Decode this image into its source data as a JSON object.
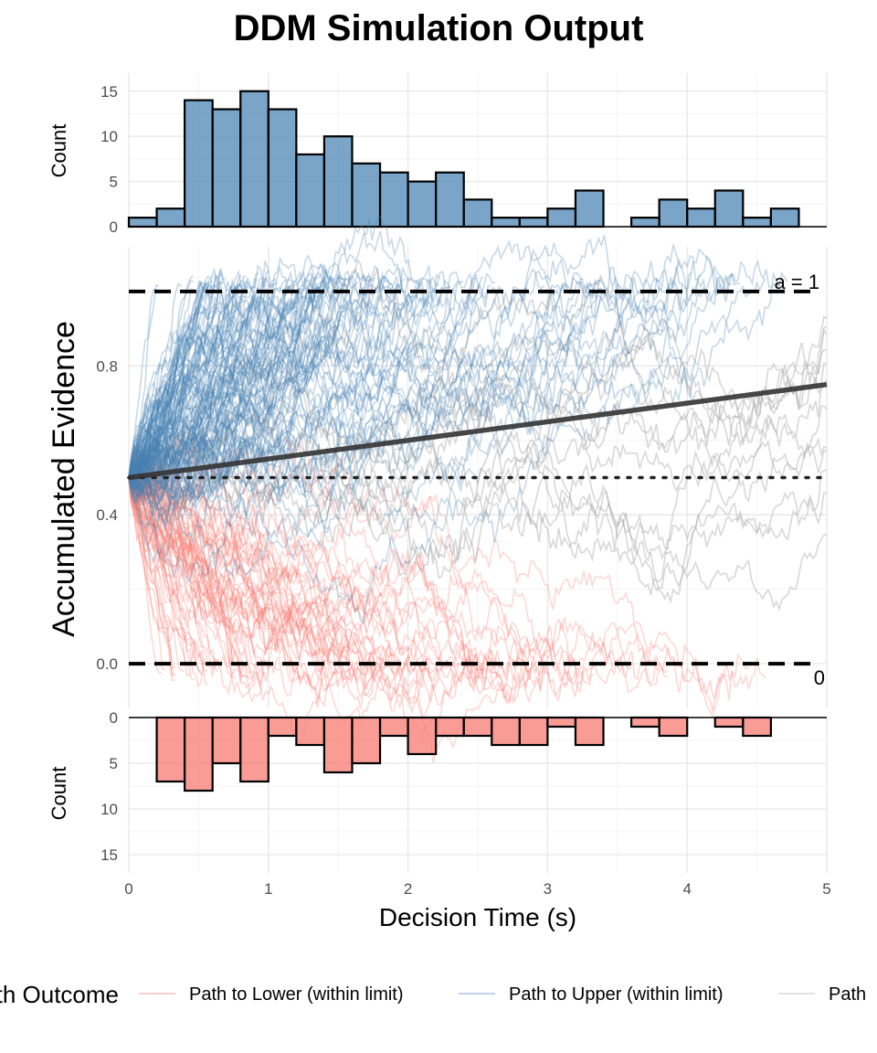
{
  "chart_data": {
    "type": "line",
    "title": "DDM Simulation Output",
    "colors": {
      "upper": "#4682b4",
      "lower": "#f8766d",
      "grey": "#a9a9a9",
      "trend": "#333333",
      "boundary": "#000000"
    },
    "top_histogram": {
      "type": "bar",
      "ylabel": "Count",
      "ylim": [
        0,
        17
      ],
      "yticks": [
        "0",
        "5",
        "10",
        "15"
      ],
      "bin_width": 0.2,
      "bin_starts": [
        0,
        0.2,
        0.4,
        0.6,
        0.8,
        1.0,
        1.2,
        1.4,
        1.6,
        1.8,
        2.0,
        2.2,
        2.4,
        2.6,
        2.8,
        3.0,
        3.2,
        3.6,
        3.8,
        4.0,
        4.2,
        4.4,
        4.6
      ],
      "values": [
        1,
        2,
        14,
        13,
        15,
        13,
        8,
        10,
        7,
        6,
        5,
        6,
        3,
        1,
        1,
        2,
        4,
        1,
        3,
        2,
        4,
        1,
        2
      ]
    },
    "main_panel": {
      "ylabel": "Accumulated Evidence",
      "ylim": [
        -0.12,
        1.12
      ],
      "yticks": [
        "0.0",
        "0.4",
        "0.8"
      ],
      "upper_boundary": 1,
      "upper_boundary_label": "a = 1",
      "lower_boundary": 0,
      "lower_boundary_label": "0",
      "starting_point": 0.5,
      "trend_line": {
        "x": [
          0,
          5
        ],
        "y": [
          0.5,
          0.75
        ]
      },
      "n_upper_paths": 110,
      "n_lower_paths": 62,
      "n_unfinished_paths": 12
    },
    "bottom_histogram": {
      "type": "bar",
      "ylabel": "Count",
      "ylim": [
        0,
        17
      ],
      "yticks": [
        "0",
        "5",
        "10",
        "15"
      ],
      "inverted": true,
      "bin_width": 0.2,
      "bin_starts": [
        0.2,
        0.4,
        0.6,
        0.8,
        1.0,
        1.2,
        1.4,
        1.6,
        1.8,
        2.0,
        2.2,
        2.4,
        2.6,
        2.8,
        3.0,
        3.2,
        3.6,
        3.8,
        4.2,
        4.4
      ],
      "values": [
        7,
        8,
        5,
        7,
        2,
        3,
        6,
        5,
        2,
        4,
        2,
        2,
        3,
        3,
        1,
        3,
        1,
        2,
        1,
        2
      ]
    },
    "x_axis": {
      "label": "Decision Time (s)",
      "xlim": [
        0,
        5
      ],
      "ticks": [
        "0",
        "1",
        "2",
        "3",
        "4",
        "5"
      ]
    },
    "legend": {
      "title": "Path Outcome",
      "position": "bottom",
      "items": [
        {
          "label": "Path to Lower (within limit)",
          "color": "#f8766d"
        },
        {
          "label": "Path to Upper (within limit)",
          "color": "#4682b4"
        },
        {
          "label": "Path",
          "color": "#a9a9a9"
        }
      ]
    }
  }
}
